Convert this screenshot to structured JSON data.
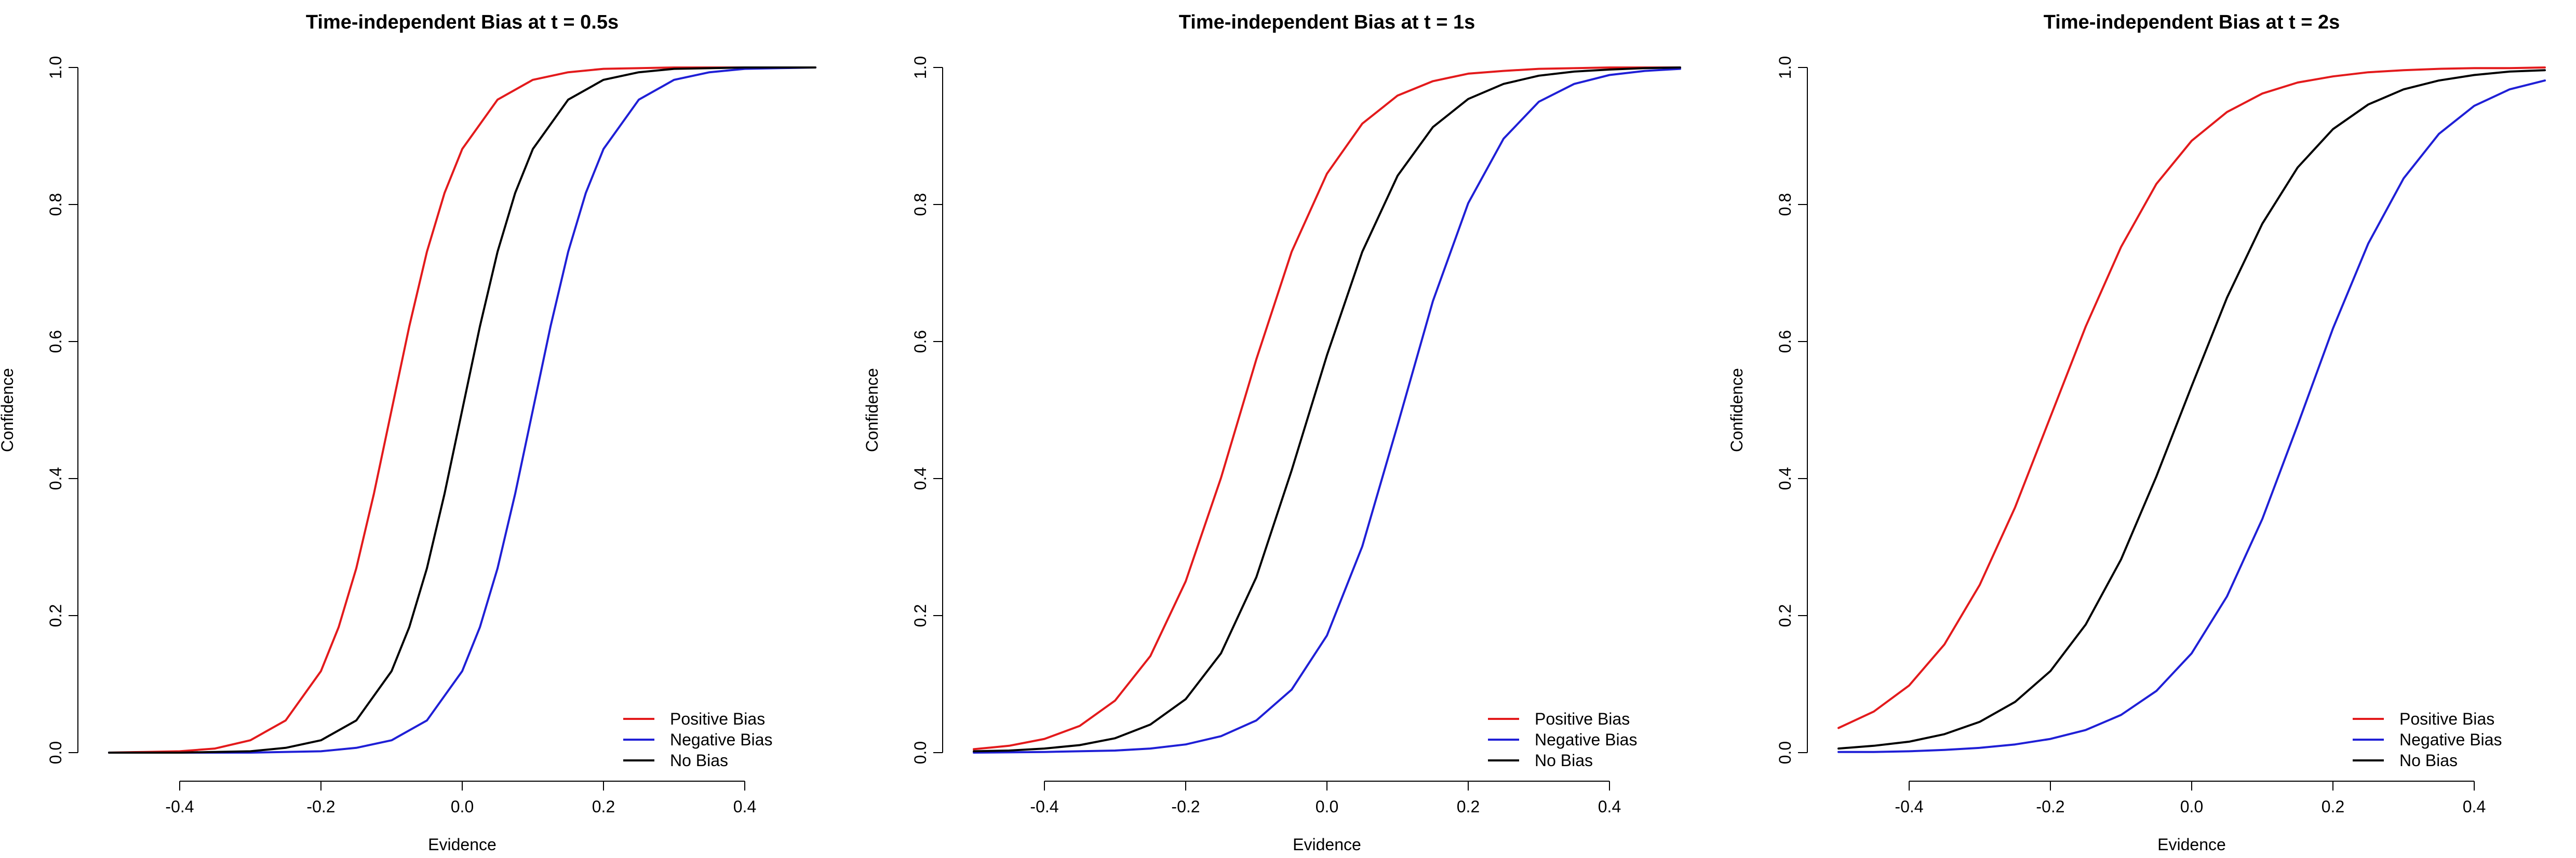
{
  "colors": {
    "positive": "#e31a1c",
    "negative": "#1f1fd6",
    "none": "#000000"
  },
  "chart_data": [
    {
      "type": "line",
      "title": "Time-independent Bias at t = 0.5s",
      "xlabel": "Evidence",
      "ylabel": "Confidence",
      "xlim": [
        -0.5,
        0.5
      ],
      "ylim": [
        0,
        1
      ],
      "xticks": [
        "-0.4",
        "-0.2",
        "0.0",
        "0.2",
        "0.4"
      ],
      "yticks": [
        "0.0",
        "0.2",
        "0.4",
        "0.6",
        "0.8",
        "1.0"
      ],
      "legend_position": "bottom-right",
      "series": [
        {
          "name": "Positive Bias",
          "color": "positive",
          "x": [
            -0.5,
            -0.45,
            -0.4,
            -0.35,
            -0.3,
            -0.25,
            -0.2,
            -0.175,
            -0.15,
            -0.125,
            -0.1,
            -0.075,
            -0.05,
            -0.025,
            0,
            0.05,
            0.1,
            0.15,
            0.2,
            0.3,
            0.4,
            0.5
          ],
          "y": [
            0.0,
            0.001,
            0.002,
            0.006,
            0.018,
            0.047,
            0.119,
            0.183,
            0.269,
            0.378,
            0.5,
            0.622,
            0.731,
            0.817,
            0.881,
            0.953,
            0.982,
            0.993,
            0.998,
            1.0,
            1.0,
            1.0
          ]
        },
        {
          "name": "Negative Bias",
          "color": "negative",
          "x": [
            -0.5,
            -0.4,
            -0.3,
            -0.2,
            -0.15,
            -0.1,
            -0.05,
            0,
            0.025,
            0.05,
            0.075,
            0.1,
            0.125,
            0.15,
            0.175,
            0.2,
            0.25,
            0.3,
            0.35,
            0.4,
            0.45,
            0.5
          ],
          "y": [
            0.0,
            0.0,
            0.0,
            0.002,
            0.007,
            0.018,
            0.047,
            0.119,
            0.183,
            0.269,
            0.378,
            0.5,
            0.622,
            0.731,
            0.817,
            0.881,
            0.953,
            0.982,
            0.993,
            0.998,
            0.999,
            1.0
          ]
        },
        {
          "name": "No Bias",
          "color": "none",
          "x": [
            -0.5,
            -0.4,
            -0.3,
            -0.25,
            -0.2,
            -0.15,
            -0.1,
            -0.075,
            -0.05,
            -0.025,
            0,
            0.025,
            0.05,
            0.075,
            0.1,
            0.15,
            0.2,
            0.25,
            0.3,
            0.4,
            0.5
          ],
          "y": [
            0.0,
            0.0,
            0.002,
            0.007,
            0.018,
            0.047,
            0.119,
            0.183,
            0.269,
            0.378,
            0.5,
            0.622,
            0.731,
            0.817,
            0.881,
            0.953,
            0.982,
            0.993,
            0.998,
            1.0,
            1.0
          ]
        }
      ]
    },
    {
      "type": "line",
      "title": "Time-independent Bias at t = 1s",
      "xlabel": "Evidence",
      "ylabel": "Confidence",
      "xlim": [
        -0.5,
        0.5
      ],
      "ylim": [
        0,
        1
      ],
      "xticks": [
        "-0.4",
        "-0.2",
        "0.0",
        "0.2",
        "0.4"
      ],
      "yticks": [
        "0.0",
        "0.2",
        "0.4",
        "0.6",
        "0.8",
        "1.0"
      ],
      "legend_position": "bottom-right",
      "series": [
        {
          "name": "Positive Bias",
          "color": "positive",
          "x": [
            -0.5,
            -0.45,
            -0.4,
            -0.35,
            -0.3,
            -0.25,
            -0.2,
            -0.15,
            -0.1,
            -0.05,
            0,
            0.05,
            0.1,
            0.15,
            0.2,
            0.25,
            0.3,
            0.4,
            0.5
          ],
          "y": [
            0.005,
            0.01,
            0.02,
            0.039,
            0.076,
            0.141,
            0.25,
            0.401,
            0.574,
            0.731,
            0.845,
            0.918,
            0.959,
            0.98,
            0.991,
            0.995,
            0.998,
            1.0,
            1.0
          ]
        },
        {
          "name": "Negative Bias",
          "color": "negative",
          "x": [
            -0.5,
            -0.4,
            -0.3,
            -0.25,
            -0.2,
            -0.15,
            -0.1,
            -0.05,
            0,
            0.05,
            0.1,
            0.15,
            0.2,
            0.25,
            0.3,
            0.35,
            0.4,
            0.45,
            0.5
          ],
          "y": [
            0.0,
            0.001,
            0.003,
            0.006,
            0.012,
            0.024,
            0.047,
            0.092,
            0.171,
            0.301,
            0.478,
            0.659,
            0.802,
            0.896,
            0.95,
            0.976,
            0.989,
            0.995,
            0.998
          ]
        },
        {
          "name": "No Bias",
          "color": "none",
          "x": [
            -0.5,
            -0.45,
            -0.4,
            -0.35,
            -0.3,
            -0.25,
            -0.2,
            -0.15,
            -0.1,
            -0.05,
            0,
            0.05,
            0.1,
            0.15,
            0.2,
            0.25,
            0.3,
            0.35,
            0.4,
            0.45,
            0.5
          ],
          "y": [
            0.002,
            0.003,
            0.006,
            0.011,
            0.021,
            0.041,
            0.078,
            0.145,
            0.256,
            0.412,
            0.58,
            0.731,
            0.842,
            0.913,
            0.954,
            0.976,
            0.988,
            0.994,
            0.997,
            0.999,
            1.0
          ]
        }
      ]
    },
    {
      "type": "line",
      "title": "Time-independent Bias at t = 2s",
      "xlabel": "Evidence",
      "ylabel": "Confidence",
      "xlim": [
        -0.5,
        0.5
      ],
      "ylim": [
        0,
        1
      ],
      "xticks": [
        "-0.4",
        "-0.2",
        "0.0",
        "0.2",
        "0.4"
      ],
      "yticks": [
        "0.0",
        "0.2",
        "0.4",
        "0.6",
        "0.8",
        "1.0"
      ],
      "legend_position": "bottom-right",
      "series": [
        {
          "name": "Positive Bias",
          "color": "positive",
          "x": [
            -0.5,
            -0.45,
            -0.4,
            -0.35,
            -0.3,
            -0.25,
            -0.2,
            -0.15,
            -0.1,
            -0.05,
            0,
            0.05,
            0.1,
            0.15,
            0.2,
            0.25,
            0.3,
            0.35,
            0.4,
            0.45,
            0.5
          ],
          "y": [
            0.036,
            0.06,
            0.098,
            0.158,
            0.245,
            0.358,
            0.49,
            0.622,
            0.738,
            0.83,
            0.893,
            0.935,
            0.962,
            0.978,
            0.987,
            0.993,
            0.996,
            0.998,
            0.999,
            0.999,
            1.0
          ]
        },
        {
          "name": "Negative Bias",
          "color": "negative",
          "x": [
            -0.5,
            -0.45,
            -0.4,
            -0.35,
            -0.3,
            -0.25,
            -0.2,
            -0.15,
            -0.1,
            -0.05,
            0,
            0.05,
            0.1,
            0.15,
            0.2,
            0.25,
            0.3,
            0.35,
            0.4,
            0.45,
            0.5
          ],
          "y": [
            0.001,
            0.001,
            0.002,
            0.004,
            0.007,
            0.012,
            0.02,
            0.033,
            0.055,
            0.09,
            0.145,
            0.228,
            0.341,
            0.478,
            0.619,
            0.743,
            0.838,
            0.903,
            0.944,
            0.968,
            0.981
          ]
        },
        {
          "name": "No Bias",
          "color": "none",
          "x": [
            -0.5,
            -0.45,
            -0.4,
            -0.35,
            -0.3,
            -0.25,
            -0.2,
            -0.15,
            -0.1,
            -0.05,
            0,
            0.05,
            0.1,
            0.15,
            0.2,
            0.25,
            0.3,
            0.35,
            0.4,
            0.45,
            0.5
          ],
          "y": [
            0.006,
            0.01,
            0.016,
            0.027,
            0.045,
            0.074,
            0.119,
            0.187,
            0.282,
            0.403,
            0.535,
            0.664,
            0.772,
            0.854,
            0.91,
            0.946,
            0.968,
            0.981,
            0.989,
            0.994,
            0.996
          ]
        }
      ]
    }
  ]
}
